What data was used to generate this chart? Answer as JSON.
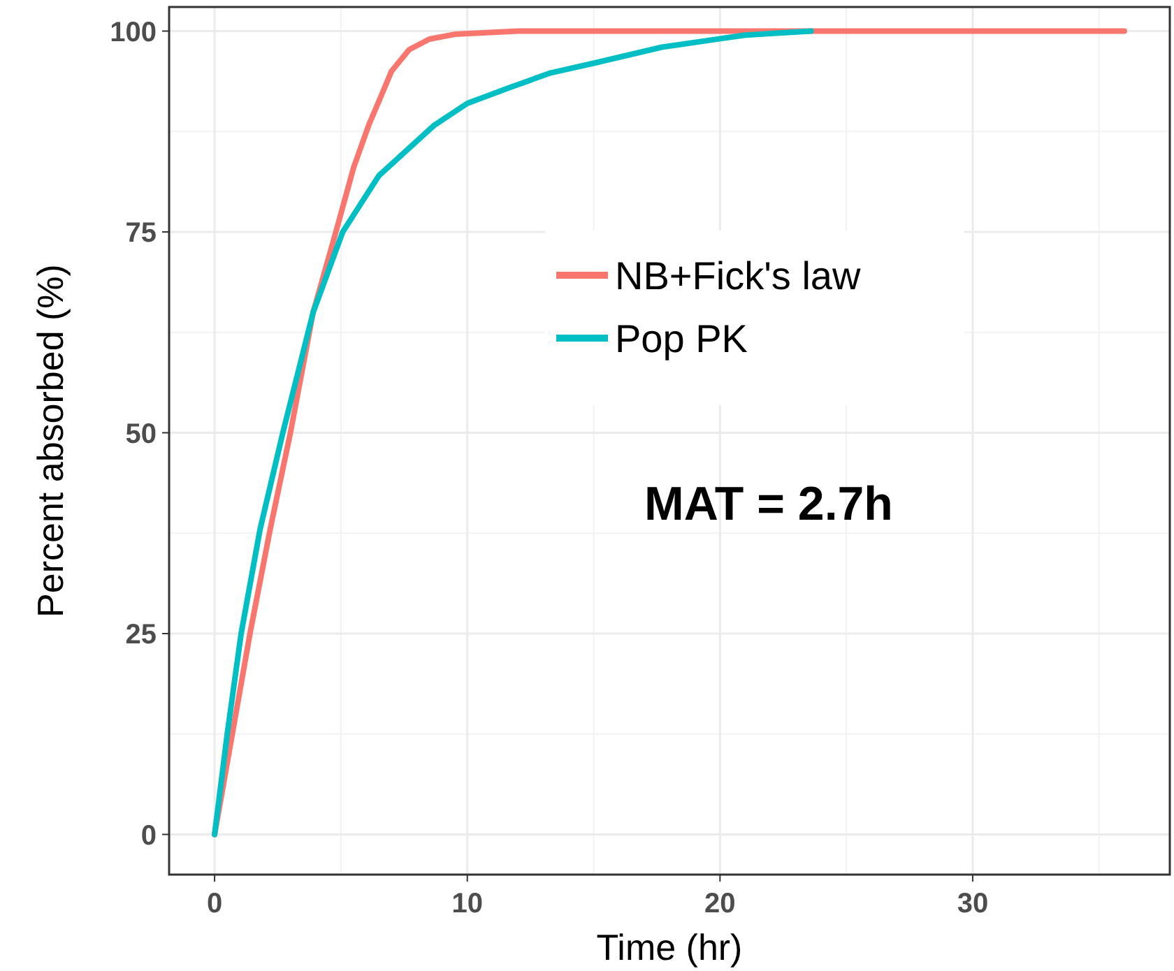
{
  "chart_data": {
    "type": "line",
    "xlabel": "Time (hr)",
    "ylabel": "Percent absorbed (%)",
    "xlim": [
      -1.8,
      37.8
    ],
    "xticks": [
      0,
      10,
      20,
      30
    ],
    "ylim": [
      -5,
      103
    ],
    "yticks": [
      0,
      25,
      50,
      75,
      100
    ],
    "grid": true,
    "legend": "right",
    "marker": "none",
    "line_style": "solid",
    "series": [
      {
        "name": "NB+Fick's law",
        "color": "#f8766d",
        "x": [
          0,
          0.7,
          1.4,
          2.2,
          3.0,
          3.9,
          4.8,
          5.5,
          6.1,
          6.6,
          7.0,
          7.7,
          8.5,
          9.5,
          12,
          20,
          36
        ],
        "values": [
          0,
          12.5,
          25,
          38,
          50,
          65,
          75,
          83,
          88.3,
          92,
          95,
          97.7,
          99,
          99.6,
          100,
          100,
          100
        ]
      },
      {
        "name": "Pop PK",
        "color": "#00bfc4",
        "x": [
          0,
          0.5,
          1.05,
          1.8,
          2.7,
          3.9,
          5.07,
          6.5,
          8.7,
          10,
          11.7,
          13.3,
          15,
          17.7,
          21,
          23.6
        ],
        "values": [
          0,
          12.5,
          25,
          38,
          50,
          65,
          75,
          82,
          88.3,
          91,
          93,
          94.8,
          96,
          98,
          99.5,
          100
        ]
      }
    ],
    "annotations": [
      "MAT = 2.7h"
    ]
  }
}
